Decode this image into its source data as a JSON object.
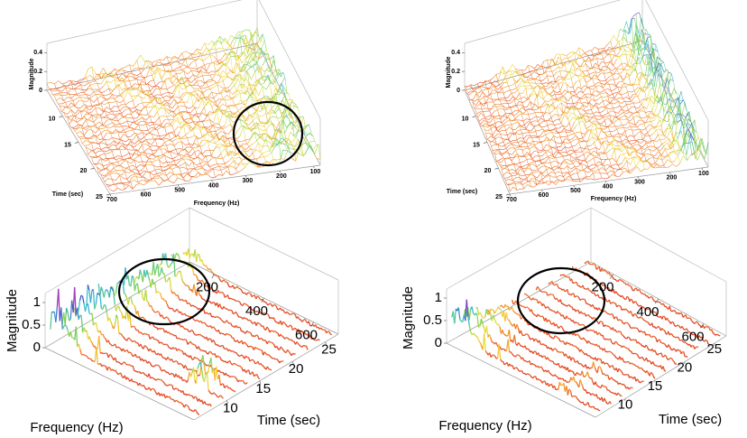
{
  "chart_data": [
    {
      "type": "surface3d",
      "zlabel": "Magnitude",
      "ylabel": "Time (sec)",
      "xlabel": "Frequency (Hz)",
      "xlim": [
        80,
        700
      ],
      "ylim": [
        5,
        25
      ],
      "zlim": [
        0,
        0.5
      ],
      "xticks": [
        100,
        200,
        300,
        400,
        500,
        600,
        700
      ],
      "yticks": [
        10,
        15,
        20,
        25
      ],
      "zticks": [
        0,
        0.2,
        0.4
      ]
    },
    {
      "type": "surface3d",
      "zlabel": "Magnitude",
      "ylabel": "Time (sec)",
      "xlabel": "Frequency (Hz)",
      "xlim": [
        80,
        700
      ],
      "ylim": [
        5,
        25
      ],
      "zlim": [
        0,
        0.5
      ],
      "xticks": [
        100,
        200,
        300,
        400,
        500,
        600,
        700
      ],
      "yticks": [
        10,
        15,
        20,
        25
      ],
      "zticks": [
        0,
        0.2,
        0.4
      ]
    },
    {
      "type": "waterfall3d",
      "zlabel": "Magnitude",
      "ylabel": "Time (sec)",
      "xlabel": "Frequency (Hz)",
      "xlim": [
        100,
        700
      ],
      "ylim": [
        5,
        27
      ],
      "zlim": [
        0,
        1.2
      ],
      "xticks": [
        200,
        400,
        600
      ],
      "yticks": [
        10,
        15,
        20,
        25
      ],
      "zticks": [
        0,
        0.5,
        1
      ]
    },
    {
      "type": "waterfall3d",
      "zlabel": "Magnitude",
      "ylabel": "Time (sec)",
      "xlabel": "Frequency (Hz)",
      "xlim": [
        100,
        700
      ],
      "ylim": [
        5,
        27
      ],
      "zlim": [
        0,
        1.2
      ],
      "xticks": [
        200,
        400,
        600
      ],
      "yticks": [
        10,
        15,
        20,
        25
      ],
      "zticks": [
        0,
        0.5,
        1
      ]
    }
  ]
}
